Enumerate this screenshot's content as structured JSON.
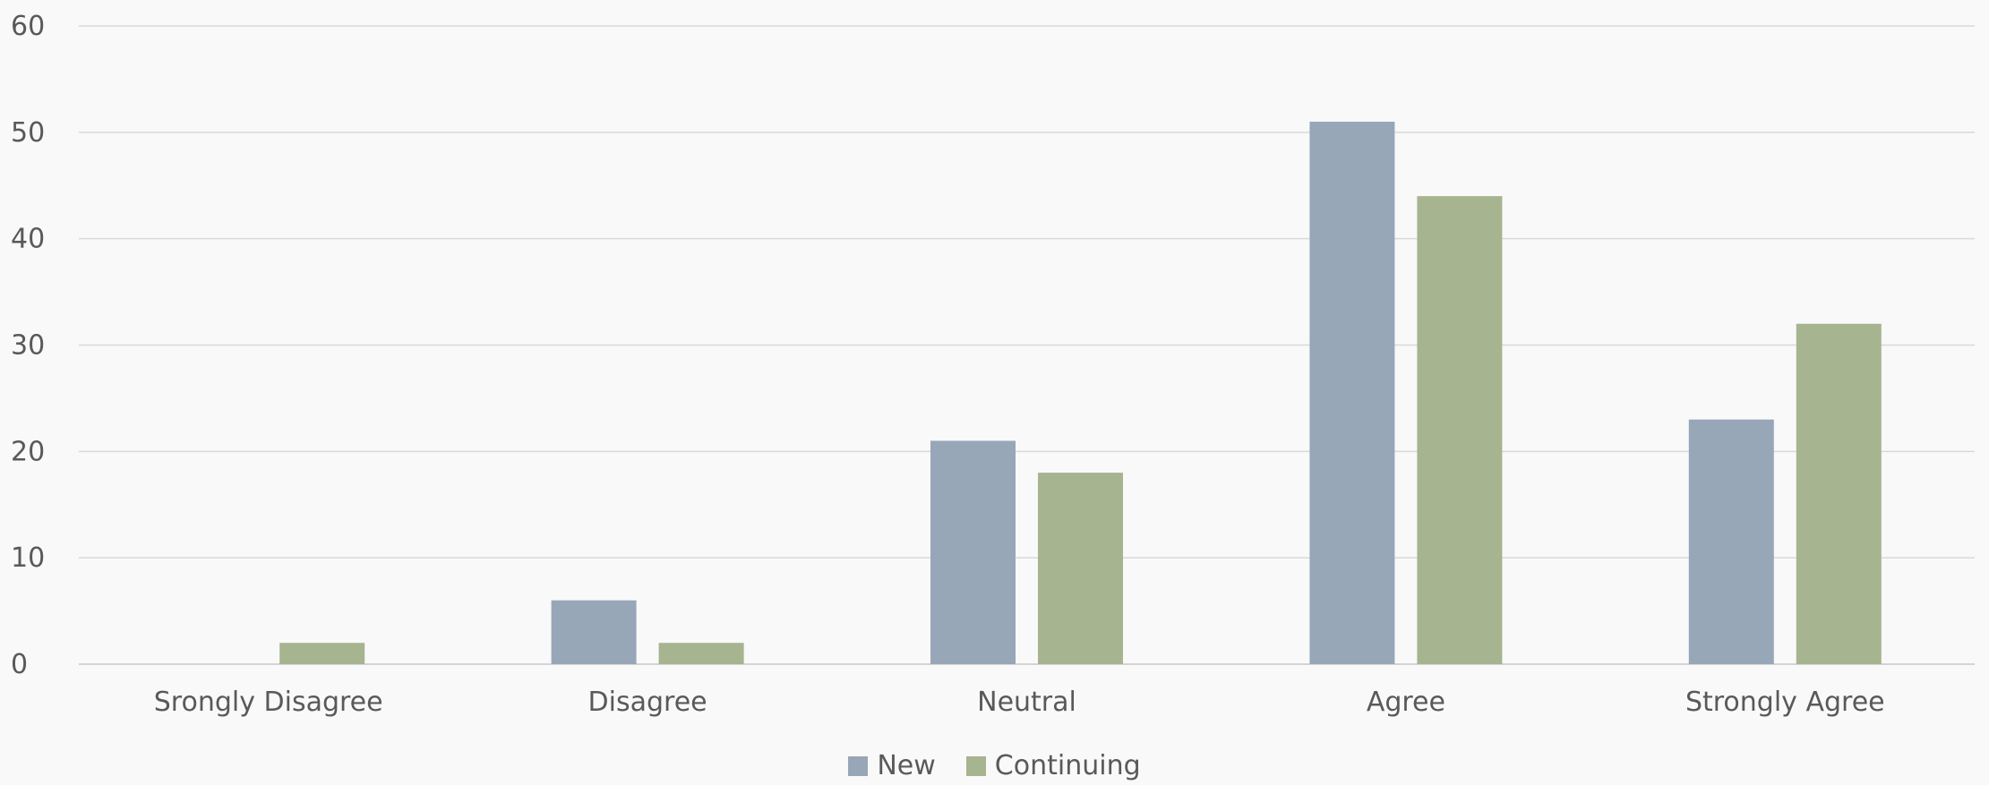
{
  "chart_data": {
    "type": "bar",
    "title": "",
    "xlabel": "",
    "ylabel": "",
    "categories": [
      "Srongly Disagree",
      "Disagree",
      "Neutral",
      "Agree",
      "Strongly Agree"
    ],
    "series": [
      {
        "name": "New",
        "color": "#97a7b8",
        "values": [
          0,
          6,
          21,
          51,
          23
        ]
      },
      {
        "name": "Continuing",
        "color": "#a6b48f",
        "values": [
          2,
          2,
          18,
          44,
          32
        ]
      }
    ],
    "ylim": [
      0,
      60
    ],
    "yticks": [
      "0",
      "10",
      "20",
      "30",
      "40",
      "50",
      "60"
    ],
    "grid": true,
    "legend_position": "bottom"
  }
}
